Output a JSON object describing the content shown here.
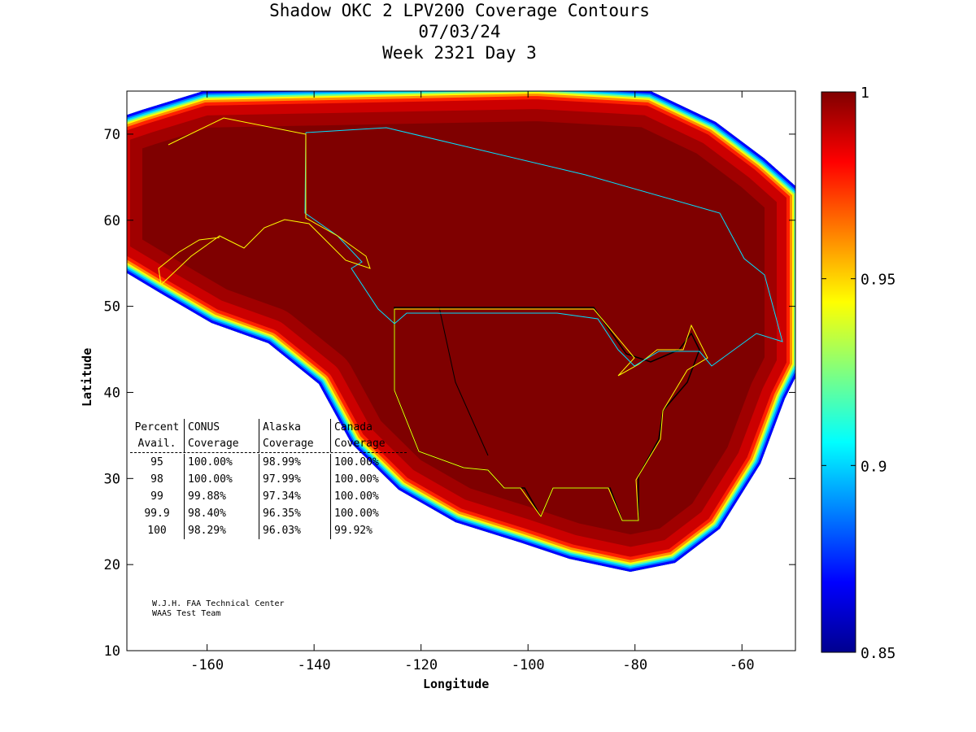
{
  "chart_data": {
    "type": "heatmap",
    "title_lines": [
      "Shadow OKC 2 LPV200 Coverage Contours",
      "07/03/24",
      "Week 2321 Day 3"
    ],
    "xlabel": "Longitude",
    "ylabel": "Latitude",
    "xlim": [
      -175,
      -50
    ],
    "ylim": [
      10,
      75
    ],
    "xticks": [
      -160,
      -140,
      -120,
      -100,
      -80,
      -60
    ],
    "yticks": [
      10,
      20,
      30,
      40,
      50,
      60,
      70
    ],
    "colorbar": {
      "range": [
        0.85,
        1
      ],
      "ticks": [
        "0.85",
        "0.9",
        "0.95",
        "1"
      ],
      "colormap": "jet"
    },
    "table": {
      "header1": [
        "Percent",
        "CONUS",
        "Alaska",
        "Canada"
      ],
      "header2": [
        "Avail.",
        "Coverage",
        "Coverage",
        "Coverage"
      ],
      "rows": [
        [
          "95",
          "100.00%",
          "98.99%",
          "100.00%"
        ],
        [
          "98",
          "100.00%",
          "97.99%",
          "100.00%"
        ],
        [
          "99",
          "99.88%",
          "97.34%",
          "100.00%"
        ],
        [
          "99.9",
          "98.40%",
          "96.35%",
          "100.00%"
        ],
        [
          "100",
          "98.29%",
          "96.03%",
          "99.92%"
        ]
      ]
    },
    "credit": [
      "W.J.H. FAA Technical Center",
      "WAAS Test Team"
    ]
  }
}
